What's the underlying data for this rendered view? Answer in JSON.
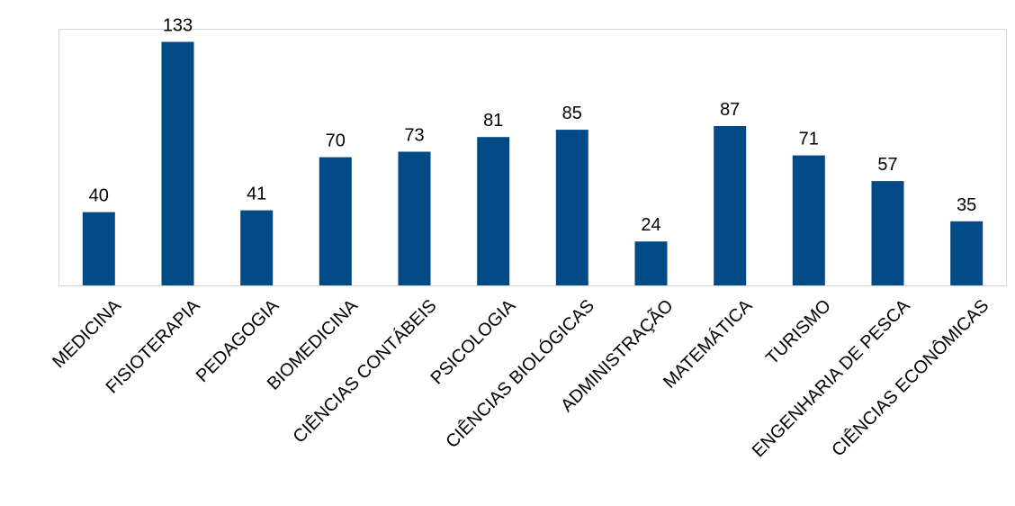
{
  "chart_data": {
    "type": "bar",
    "title": "",
    "xlabel": "",
    "ylabel": "",
    "categories": [
      "MEDICINA",
      "FISIOTERAPIA",
      "PEDAGOGIA",
      "BIOMEDICINA",
      "CIÊNCIAS CONTÁBEIS",
      "PSICOLOGIA",
      "CIÊNCIAS BIOLÓGICAS",
      "ADMINISTRAÇÃO",
      "MATEMÁTICA",
      "TURISMO",
      "ENGENHARIA DE PESCA",
      "CIÊNCIAS ECONÔMICAS"
    ],
    "values": [
      40,
      133,
      41,
      70,
      73,
      81,
      85,
      24,
      87,
      71,
      57,
      35
    ],
    "ylim": [
      0,
      140
    ],
    "grid": false,
    "legend": "none",
    "bar_color": "#024A86"
  }
}
